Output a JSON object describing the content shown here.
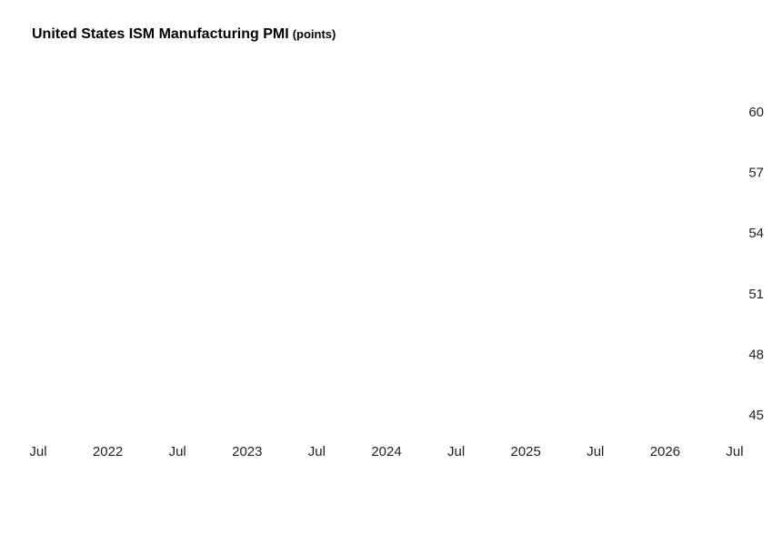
{
  "chart_data": {
    "type": "line",
    "title": "United States ISM Manufacturing PMI",
    "unit": "(points)",
    "xlabel": "",
    "ylabel": "",
    "x_tick_labels": [
      "Jul",
      "2022",
      "Jul",
      "2023",
      "Jul",
      "2024",
      "Jul",
      "2025",
      "Jul",
      "2026",
      "Jul"
    ],
    "xlim": [
      "2021-07",
      "2026-07"
    ],
    "y_ticks": [
      45,
      48,
      51,
      54,
      57,
      60
    ],
    "ylim": [
      45,
      60
    ],
    "y_axis_side": "right",
    "grid": false,
    "legend": "none",
    "series": []
  }
}
